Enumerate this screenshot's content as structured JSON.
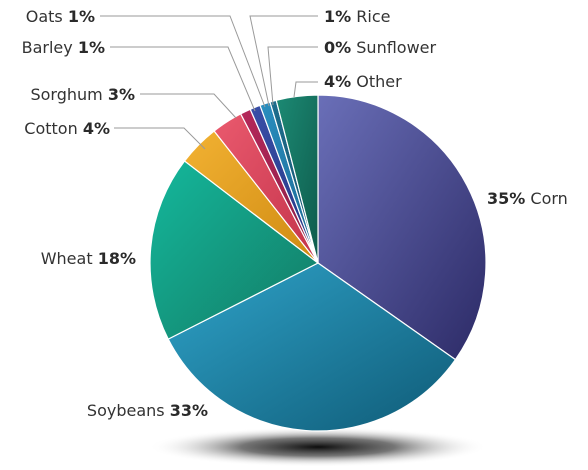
{
  "chart_data": {
    "type": "pie",
    "title": "",
    "slices": [
      {
        "name": "Corn",
        "value": 35,
        "label": "35%",
        "colors": [
          "#6a6fb8",
          "#2c2a66"
        ]
      },
      {
        "name": "Soybeans",
        "value": 33,
        "label": "33%",
        "colors": [
          "#2fa3c9",
          "#0f5b77"
        ]
      },
      {
        "name": "Wheat",
        "value": 18,
        "label": "18%",
        "colors": [
          "#14b89c",
          "#137a64"
        ]
      },
      {
        "name": "Cotton",
        "value": 4,
        "label": "4%",
        "colors": [
          "#f2b233",
          "#cf8a12"
        ]
      },
      {
        "name": "Sorghum",
        "value": 3,
        "label": "3%",
        "colors": [
          "#ea5a6e",
          "#c3324a"
        ]
      },
      {
        "name": "Barley",
        "value": 1,
        "label": "1%",
        "colors": [
          "#b5285a",
          "#8a1d45"
        ]
      },
      {
        "name": "Oats",
        "value": 1,
        "label": "1%",
        "colors": [
          "#3a4fa8",
          "#233682"
        ]
      },
      {
        "name": "Rice",
        "value": 1,
        "label": "1%",
        "colors": [
          "#2a8fc0",
          "#1a6690"
        ]
      },
      {
        "name": "Sunflower",
        "value": 0,
        "label": "0%",
        "colors": [
          "#1e6f8f",
          "#14506a"
        ]
      },
      {
        "name": "Other",
        "value": 4,
        "label": "4%",
        "colors": [
          "#1c8a74",
          "#0e5a4b"
        ]
      }
    ],
    "start_angle_deg": 0,
    "direction": "clockwise",
    "legend": "none"
  }
}
